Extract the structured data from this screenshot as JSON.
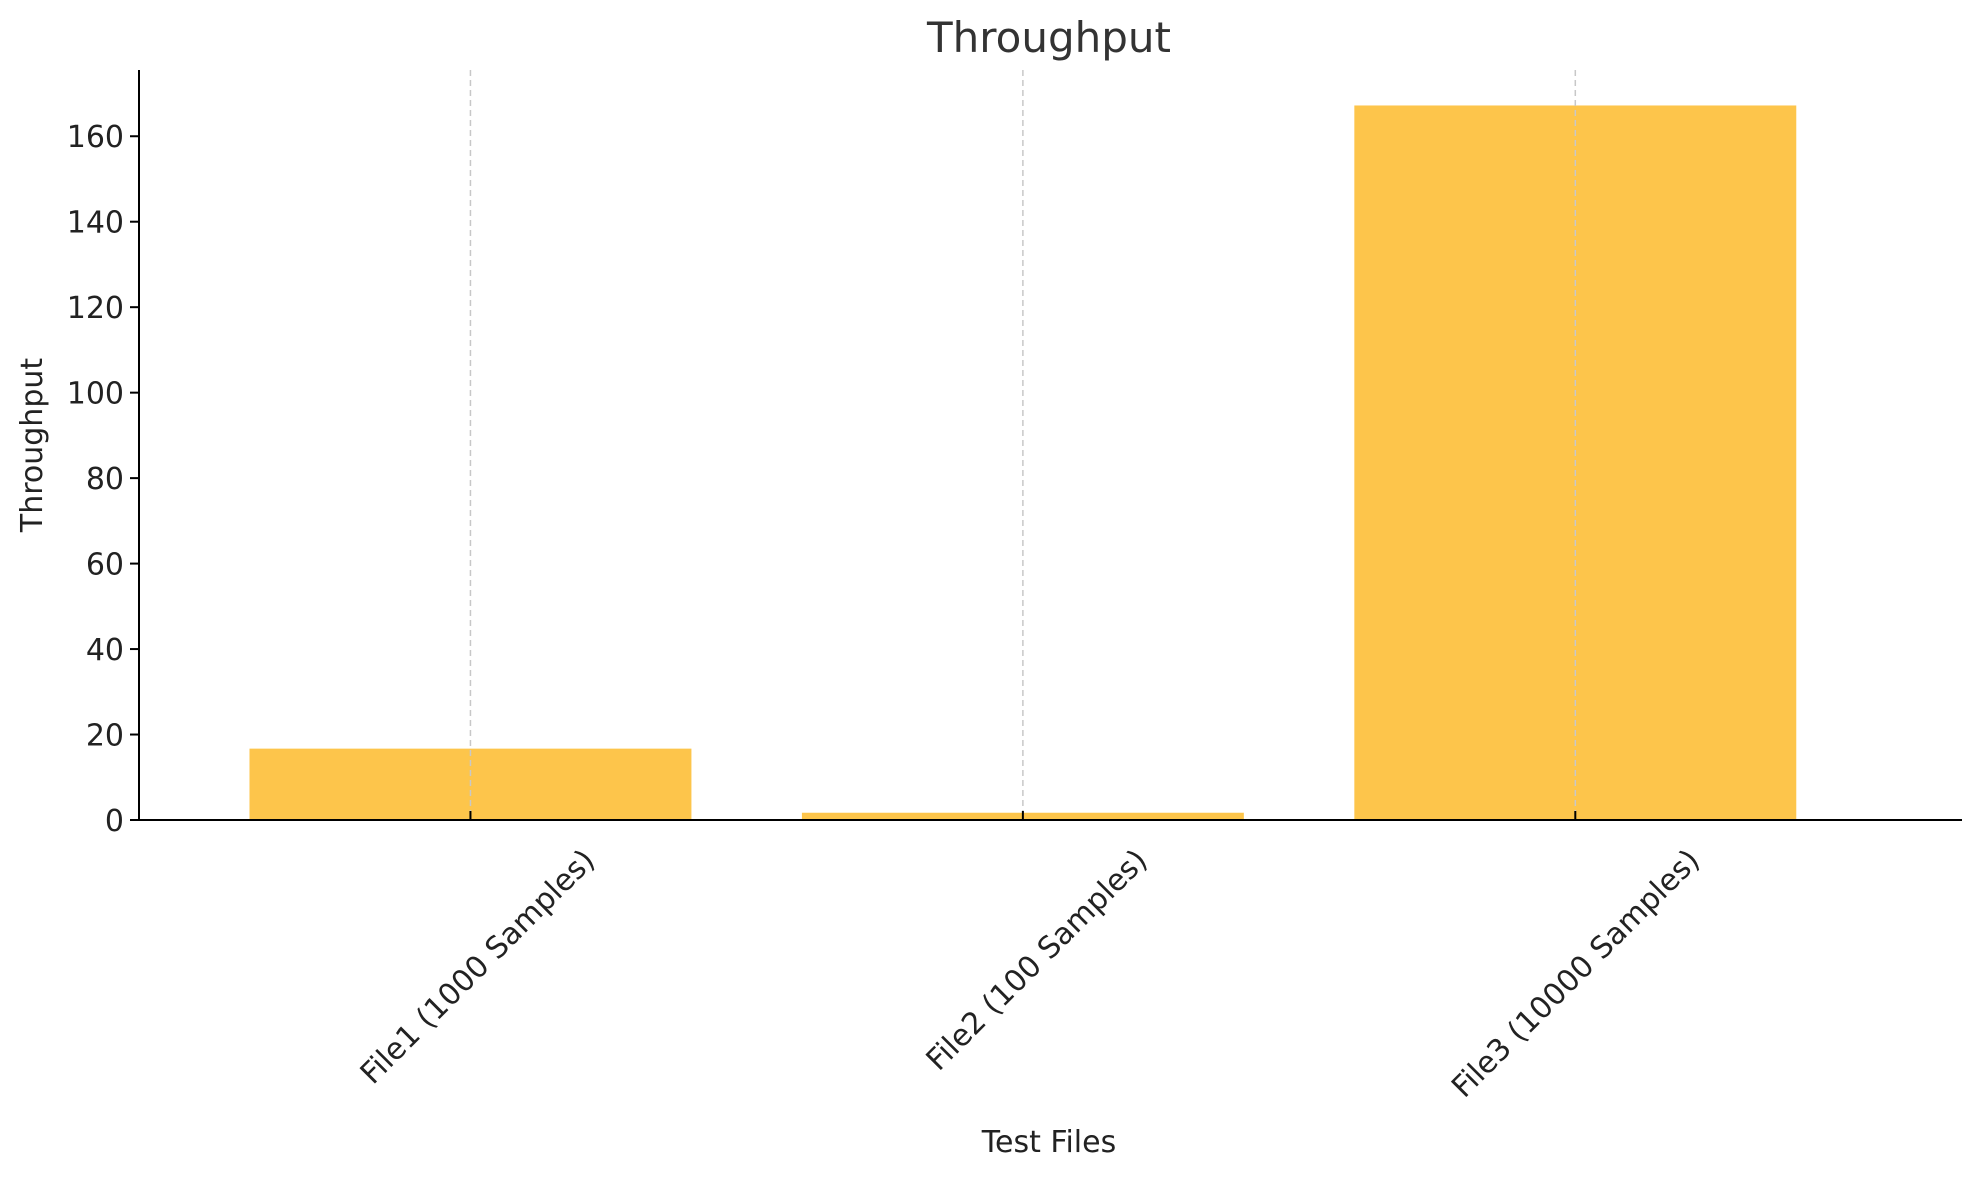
{
  "chart_data": {
    "type": "bar",
    "title": "Throughput",
    "xlabel": "Test Files",
    "ylabel": "Throughput",
    "categories": [
      "File1 (1000 Samples)",
      "File2 (100 Samples)",
      "File3 (10000 Samples)"
    ],
    "values": [
      16.7,
      1.7,
      167.2
    ],
    "ylim": [
      0,
      175.5
    ],
    "yticks": [
      0,
      20,
      40,
      60,
      80,
      100,
      120,
      140,
      160
    ],
    "grid": "vertical",
    "bar_color": "#FDC54B",
    "legend": "none"
  }
}
